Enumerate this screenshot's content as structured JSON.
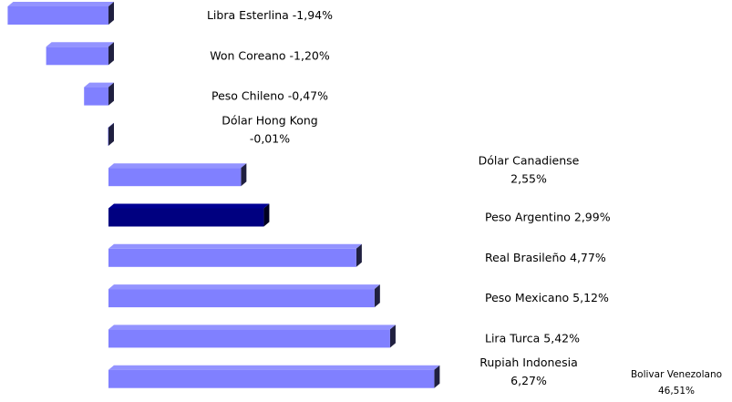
{
  "chart_data": {
    "type": "bar",
    "orientation": "horizontal",
    "categories": [
      "Libra Esterlina",
      "Won Coreano",
      "Peso Chileno",
      "Dólar Hong Kong",
      "Dólar Canadiense",
      "Peso Argentino",
      "Real Brasileño",
      "Peso Mexicano",
      "Lira Turca",
      "Rupiah Indonesia"
    ],
    "values": [
      -1.94,
      -1.2,
      -0.47,
      -0.01,
      2.55,
      2.99,
      4.77,
      5.12,
      5.42,
      6.27
    ],
    "value_labels": [
      "-1,94%",
      "-1,20%",
      "-0,47%",
      "-0,01%",
      "2,55%",
      "2,99%",
      "4,77%",
      "5,12%",
      "5,42%",
      "6,27%"
    ],
    "colors": [
      "#8080ff",
      "#8080ff",
      "#8080ff",
      "#8080ff",
      "#8080ff",
      "#000080",
      "#8080ff",
      "#8080ff",
      "#8080ff",
      "#8080ff"
    ],
    "xlim": [
      -2,
      12
    ],
    "annotations": [
      "Bolivar Venezolano",
      "46,51%"
    ]
  }
}
